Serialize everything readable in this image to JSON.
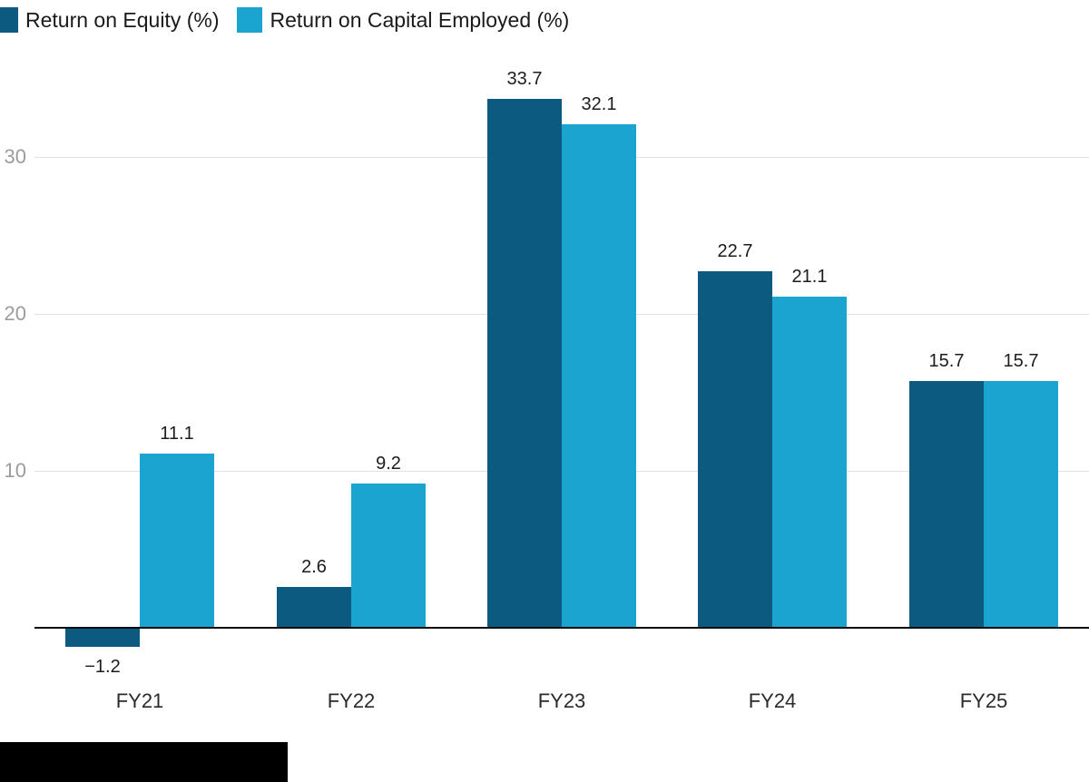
{
  "legend": {
    "items": [
      {
        "label": "Return on Equity (%)"
      },
      {
        "label": "Return on Capital Employed (%)"
      }
    ]
  },
  "chart_data": {
    "type": "bar",
    "categories": [
      "FY21",
      "FY22",
      "FY23",
      "FY24",
      "FY25"
    ],
    "series": [
      {
        "name": "Return on Equity (%)",
        "color": "#0c5a80",
        "values": [
          -1.2,
          2.6,
          33.7,
          22.7,
          15.7
        ],
        "labels": [
          "−1.2",
          "2.6",
          "33.7",
          "22.7",
          "15.7"
        ]
      },
      {
        "name": "Return on Capital Employed (%)",
        "color": "#1ba4d0",
        "values": [
          11.1,
          9.2,
          32.1,
          21.1,
          15.7
        ],
        "labels": [
          "11.1",
          "9.2",
          "32.1",
          "21.1",
          "15.7"
        ]
      }
    ],
    "yticks": [
      "10",
      "20",
      "30"
    ],
    "ytick_values": [
      10,
      20,
      30
    ],
    "ylim": [
      -3,
      36
    ],
    "grid": true,
    "legend_position": "top-left"
  },
  "styles": {
    "grid_color": "#e2e2e2",
    "axis_line_color": "#0b0b0b",
    "ytick_color": "#9c9c9c",
    "xtick_color": "#2b2b2b",
    "value_label_color": "#1c1c1c",
    "background": "#ffffff",
    "redaction_color": "#000000"
  }
}
